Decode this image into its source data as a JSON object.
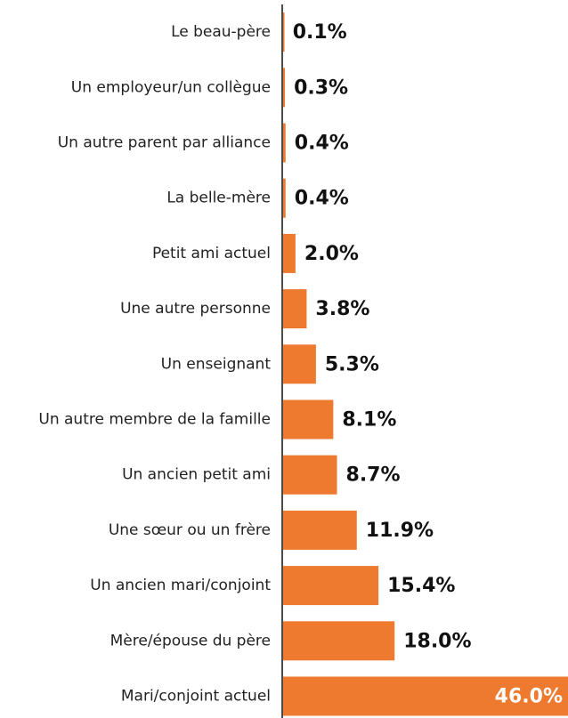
{
  "chart_data": {
    "type": "barh",
    "categories": [
      "Le beau-père",
      "Un employeur/un collègue",
      "Un autre parent par alliance",
      "La belle-mère",
      "Petit ami actuel",
      "Une autre personne",
      "Un enseignant",
      "Un autre membre de la famille",
      "Un ancien petit ami",
      "Une sœur ou un frère",
      "Un ancien mari/conjoint",
      "Mère/épouse du père",
      "Mari/conjoint actuel"
    ],
    "values": [
      0.1,
      0.3,
      0.4,
      0.4,
      2.0,
      3.8,
      5.3,
      8.1,
      8.7,
      11.9,
      15.4,
      18.0,
      46.0
    ],
    "value_labels": [
      "0.1%",
      "0.3%",
      "0.4%",
      "0.4%",
      "2.0%",
      "3.8%",
      "5.3%",
      "8.1%",
      "8.7%",
      "11.9%",
      "15.4%",
      "18.0%",
      "46.0%"
    ],
    "color": "#ee7a30"
  }
}
